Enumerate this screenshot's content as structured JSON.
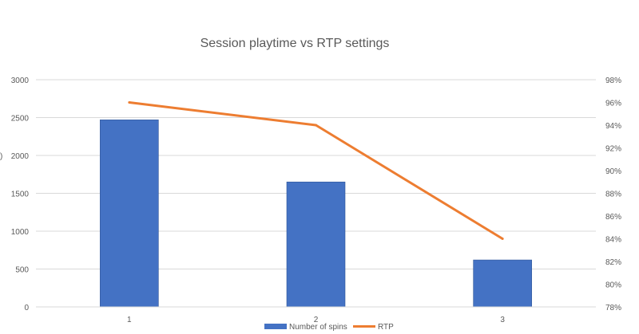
{
  "chart_data": {
    "type": "bar",
    "title": "Session playtime vs RTP settings",
    "categories": [
      "1",
      "2",
      "3"
    ],
    "series": [
      {
        "name": "Number of spins",
        "type": "bar",
        "axis": "left",
        "color": "#4472C4",
        "values": [
          2470,
          1650,
          620
        ]
      },
      {
        "name": "RTP",
        "type": "line",
        "axis": "right",
        "color": "#ED7D31",
        "values": [
          96,
          94,
          84
        ]
      }
    ],
    "y_left": {
      "label": ")",
      "ylim": [
        0,
        3000
      ],
      "ticks": [
        "0",
        "500",
        "1000",
        "1500",
        "2000",
        "2500",
        "3000"
      ]
    },
    "y_right": {
      "ylim": [
        78,
        98
      ],
      "ticks": [
        "78%",
        "80%",
        "82%",
        "84%",
        "86%",
        "88%",
        "90%",
        "92%",
        "94%",
        "96%",
        "98%"
      ]
    },
    "grid": true,
    "legend": "bottom"
  }
}
